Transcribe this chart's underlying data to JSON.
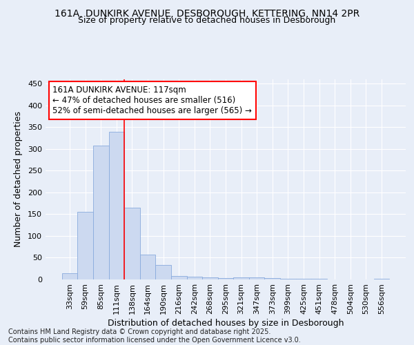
{
  "title": "161A, DUNKIRK AVENUE, DESBOROUGH, KETTERING, NN14 2PR",
  "subtitle": "Size of property relative to detached houses in Desborough",
  "xlabel": "Distribution of detached houses by size in Desborough",
  "ylabel": "Number of detached properties",
  "categories": [
    "33sqm",
    "59sqm",
    "85sqm",
    "111sqm",
    "138sqm",
    "164sqm",
    "190sqm",
    "216sqm",
    "242sqm",
    "268sqm",
    "295sqm",
    "321sqm",
    "347sqm",
    "373sqm",
    "399sqm",
    "425sqm",
    "451sqm",
    "478sqm",
    "504sqm",
    "530sqm",
    "556sqm"
  ],
  "values": [
    15,
    155,
    308,
    340,
    165,
    57,
    33,
    8,
    7,
    5,
    3,
    4,
    4,
    3,
    2,
    1,
    1,
    0,
    0,
    0,
    2
  ],
  "bar_color": "#ccd9f0",
  "bar_edge_color": "#88aadd",
  "vline_x": 3.5,
  "vline_color": "red",
  "annotation_text": "161A DUNKIRK AVENUE: 117sqm\n← 47% of detached houses are smaller (516)\n52% of semi-detached houses are larger (565) →",
  "annotation_box_color": "white",
  "annotation_box_edge": "red",
  "ylim": [
    0,
    460
  ],
  "yticks": [
    0,
    50,
    100,
    150,
    200,
    250,
    300,
    350,
    400,
    450
  ],
  "footer": "Contains HM Land Registry data © Crown copyright and database right 2025.\nContains public sector information licensed under the Open Government Licence v3.0.",
  "background_color": "#e8eef8",
  "grid_color": "white",
  "title_fontsize": 10,
  "subtitle_fontsize": 9,
  "axis_label_fontsize": 9,
  "tick_fontsize": 8,
  "footer_fontsize": 7,
  "annotation_fontsize": 8.5
}
